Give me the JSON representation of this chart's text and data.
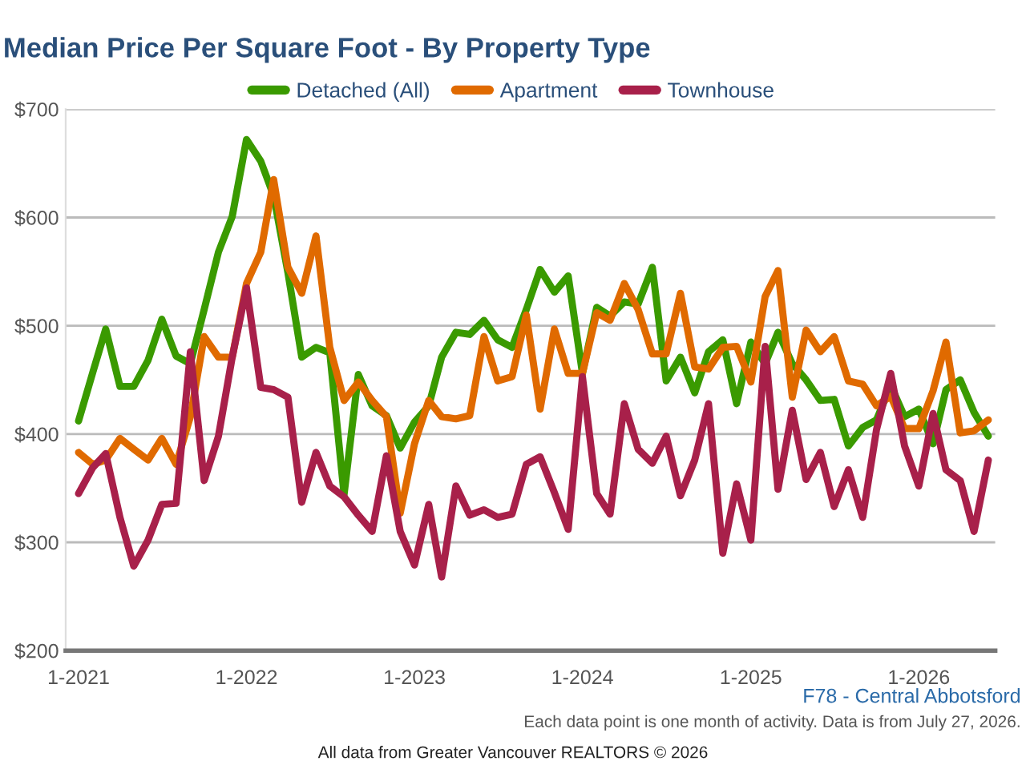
{
  "chart_data": {
    "type": "line",
    "title": "Median Price Per Square Foot - By Property Type",
    "x": [
      "2021-01",
      "2021-02",
      "2021-03",
      "2021-04",
      "2021-05",
      "2021-06",
      "2021-07",
      "2021-08",
      "2021-09",
      "2021-10",
      "2021-11",
      "2021-12",
      "2022-01",
      "2022-02",
      "2022-03",
      "2022-04",
      "2022-05",
      "2022-06",
      "2022-07",
      "2022-08",
      "2022-09",
      "2022-10",
      "2022-11",
      "2022-12",
      "2023-01",
      "2023-02",
      "2023-03",
      "2023-04",
      "2023-05",
      "2023-06",
      "2023-07",
      "2023-08",
      "2023-09",
      "2023-10",
      "2023-11",
      "2023-12",
      "2024-01",
      "2024-02",
      "2024-03",
      "2024-04",
      "2024-05",
      "2024-06",
      "2024-07",
      "2024-08",
      "2024-09",
      "2024-10",
      "2024-11",
      "2024-12",
      "2025-01",
      "2025-02",
      "2025-03",
      "2025-04",
      "2025-05",
      "2025-06",
      "2025-07",
      "2025-08",
      "2025-09",
      "2025-10",
      "2025-11",
      "2025-12",
      "2026-01",
      "2026-02",
      "2026-03",
      "2026-04",
      "2026-05",
      "2026-06"
    ],
    "series": [
      {
        "name": "Detached (All)",
        "color": "#3a9a00",
        "values": [
          412,
          457,
          497,
          444,
          444,
          468,
          506,
          472,
          465,
          515,
          568,
          601,
          672,
          652,
          620,
          549,
          471,
          480,
          475,
          344,
          455,
          426,
          417,
          387,
          411,
          426,
          471,
          494,
          492,
          505,
          487,
          480,
          515,
          552,
          531,
          546,
          456,
          517,
          509,
          522,
          520,
          554,
          449,
          471,
          438,
          476,
          487,
          428,
          485,
          465,
          494,
          465,
          450,
          431,
          432,
          389,
          406,
          413,
          445,
          416,
          423,
          391,
          441,
          450,
          420,
          398
        ]
      },
      {
        "name": "Apartment",
        "color": "#e06a00",
        "values": [
          383,
          372,
          376,
          396,
          386,
          376,
          396,
          372,
          416,
          490,
          471,
          471,
          539,
          568,
          635,
          554,
          530,
          583,
          480,
          431,
          448,
          431,
          416,
          327,
          391,
          431,
          416,
          414,
          417,
          490,
          449,
          453,
          510,
          423,
          497,
          456,
          456,
          512,
          505,
          539,
          515,
          474,
          474,
          530,
          462,
          460,
          480,
          481,
          448,
          527,
          551,
          434,
          496,
          476,
          490,
          449,
          446,
          426,
          435,
          405,
          405,
          440,
          485,
          401,
          403,
          413
        ]
      },
      {
        "name": "Townhouse",
        "color": "#a8204a",
        "values": [
          345,
          369,
          382,
          323,
          278,
          302,
          335,
          336,
          476,
          357,
          398,
          471,
          535,
          443,
          441,
          434,
          337,
          383,
          352,
          342,
          325,
          310,
          380,
          310,
          279,
          335,
          268,
          352,
          325,
          330,
          323,
          326,
          372,
          379,
          346,
          312,
          453,
          345,
          326,
          428,
          386,
          373,
          398,
          343,
          376,
          428,
          290,
          354,
          302,
          481,
          349,
          422,
          358,
          383,
          333,
          367,
          323,
          404,
          456,
          389,
          352,
          419,
          367,
          357,
          310,
          376
        ]
      }
    ],
    "xlim": [
      "2020-12-04",
      "2026-06-16"
    ],
    "xticks": [
      {
        "value": "2021-01",
        "label": "1-2021"
      },
      {
        "value": "2022-01",
        "label": "1-2022"
      },
      {
        "value": "2023-01",
        "label": "1-2023"
      },
      {
        "value": "2024-01",
        "label": "1-2024"
      },
      {
        "value": "2025-01",
        "label": "1-2025"
      },
      {
        "value": "2026-01",
        "label": "1-2026"
      }
    ],
    "ylim": [
      200,
      700
    ],
    "yticks": [
      {
        "value": 200,
        "label": "$200"
      },
      {
        "value": 300,
        "label": "$300"
      },
      {
        "value": 400,
        "label": "$400"
      },
      {
        "value": 500,
        "label": "$500"
      },
      {
        "value": 600,
        "label": "$600"
      },
      {
        "value": 700,
        "label": "$700"
      }
    ],
    "grid": "y",
    "legend": "top",
    "marker": "none",
    "line_style": "solid",
    "annotations": [
      "F78 - Central Abbotsford",
      "Each data point is one month of activity. Data is from July 27, 2026.",
      "All data from Greater Vancouver REALTORS © 2026"
    ]
  }
}
